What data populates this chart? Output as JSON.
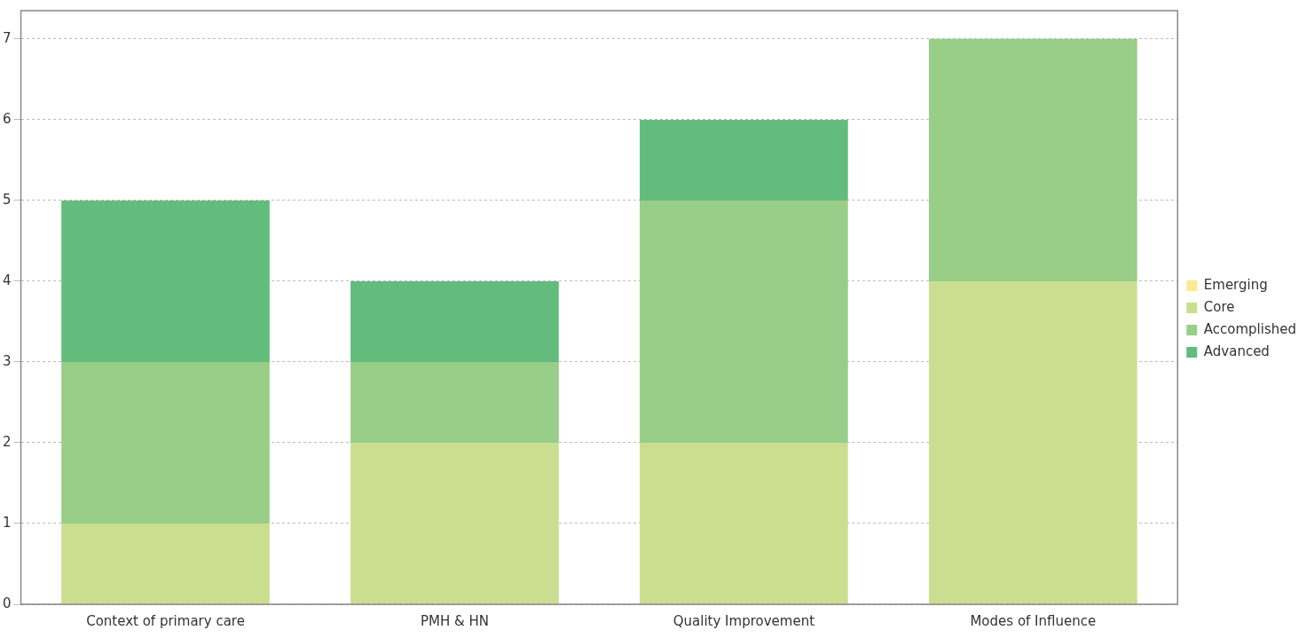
{
  "chart_data": {
    "type": "bar",
    "stacked": true,
    "categories": [
      "Context of primary care",
      "PMH & HN",
      "Quality Improvement",
      "Modes of Influence"
    ],
    "series": [
      {
        "name": "Emerging",
        "color": "#fde98f",
        "values": [
          0,
          0,
          0,
          0
        ]
      },
      {
        "name": "Core",
        "color": "#cbde90",
        "values": [
          1,
          2,
          2,
          4
        ]
      },
      {
        "name": "Accomplished",
        "color": "#98ce87",
        "values": [
          2,
          1,
          3,
          3
        ]
      },
      {
        "name": "Advanced",
        "color": "#63bc7b",
        "values": [
          2,
          1,
          1,
          0
        ]
      }
    ],
    "ylim": [
      0,
      7.35
    ],
    "yticks": [
      0,
      1,
      2,
      3,
      4,
      5,
      6,
      7
    ],
    "grid": "y",
    "legend": "right"
  }
}
